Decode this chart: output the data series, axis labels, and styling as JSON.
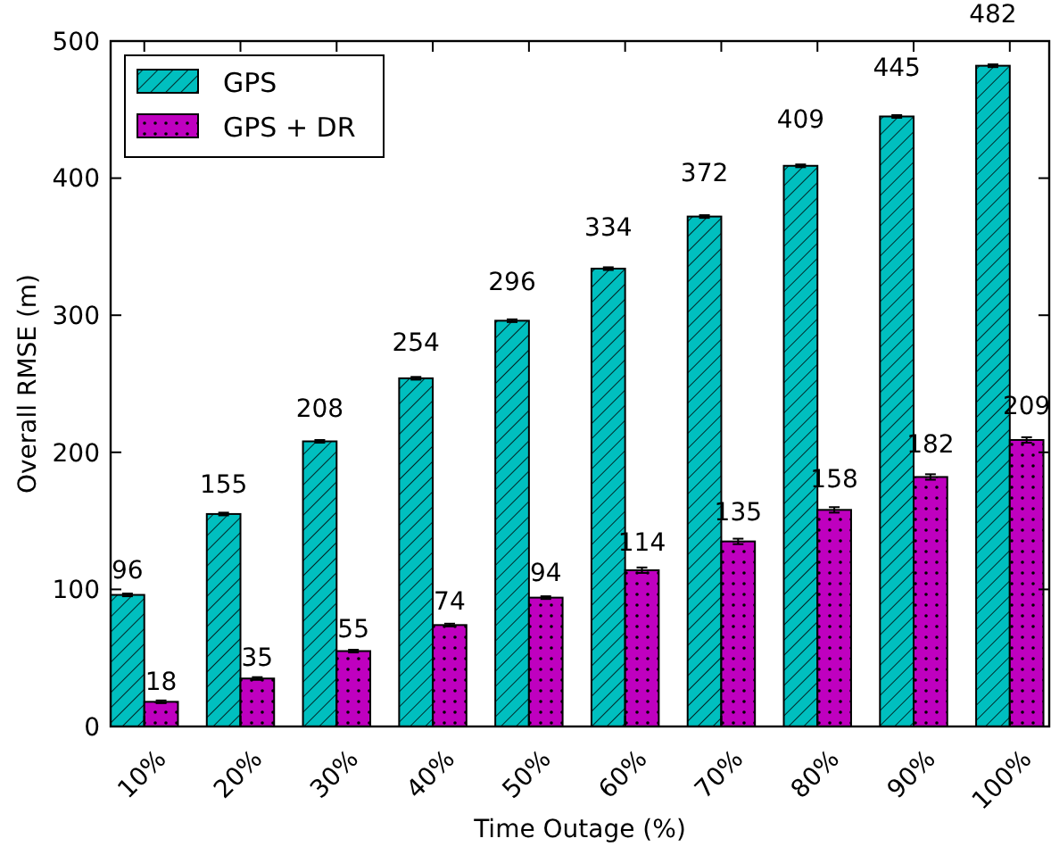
{
  "chart_data": {
    "type": "bar",
    "xlabel": "Time Outage (%)",
    "ylabel": "Overall RMSE (m)",
    "categories": [
      "10%",
      "20%",
      "30%",
      "40%",
      "50%",
      "60%",
      "70%",
      "80%",
      "90%",
      "100%"
    ],
    "series": [
      {
        "name": "GPS",
        "color": "#00bfbf",
        "values": [
          96,
          155,
          208,
          254,
          296,
          334,
          372,
          409,
          445,
          482
        ],
        "errors": [
          1,
          1,
          1,
          1,
          1,
          1,
          1,
          1,
          1,
          1
        ]
      },
      {
        "name": "GPS + DR",
        "color": "#bf00bf",
        "values": [
          18,
          35,
          55,
          74,
          94,
          114,
          135,
          158,
          182,
          209
        ],
        "errors": [
          1,
          1,
          1,
          1,
          1,
          2,
          2,
          2,
          2,
          2
        ]
      }
    ],
    "ylim": [
      0,
      500
    ],
    "yticks": [
      0,
      100,
      200,
      300,
      400,
      500
    ],
    "data_labels": true,
    "legend": "top left",
    "grid": false
  }
}
